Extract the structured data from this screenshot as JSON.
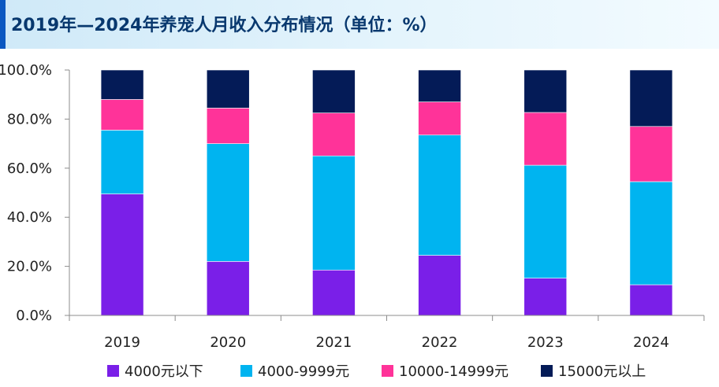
{
  "title": "2019年—2024年养宠人月收入分布情况（单位：%）",
  "chart_data": {
    "type": "bar",
    "stacked": true,
    "categories": [
      "2019",
      "2020",
      "2021",
      "2022",
      "2023",
      "2024"
    ],
    "series": [
      {
        "name": "4000元以下",
        "color": "#7a1fe8",
        "values": [
          49.5,
          22,
          18.5,
          24.5,
          15.2,
          12.5
        ]
      },
      {
        "name": "4000-9999元",
        "color": "#00b4f0",
        "values": [
          26,
          48,
          46.5,
          49,
          46,
          42
        ]
      },
      {
        "name": "10000-14999元",
        "color": "#ff3399",
        "values": [
          12.5,
          14.5,
          17.5,
          13.5,
          21.5,
          22.5
        ]
      },
      {
        "name": "15000元以上",
        "color": "#041b57",
        "values": [
          12,
          15.5,
          17.5,
          13,
          17.3,
          23
        ]
      }
    ],
    "y_ticks": [
      "0.0%",
      "20.0%",
      "40.0%",
      "60.0%",
      "80.0%",
      "100.0%"
    ],
    "ylim": [
      0,
      100
    ],
    "legend_position": "bottom"
  }
}
